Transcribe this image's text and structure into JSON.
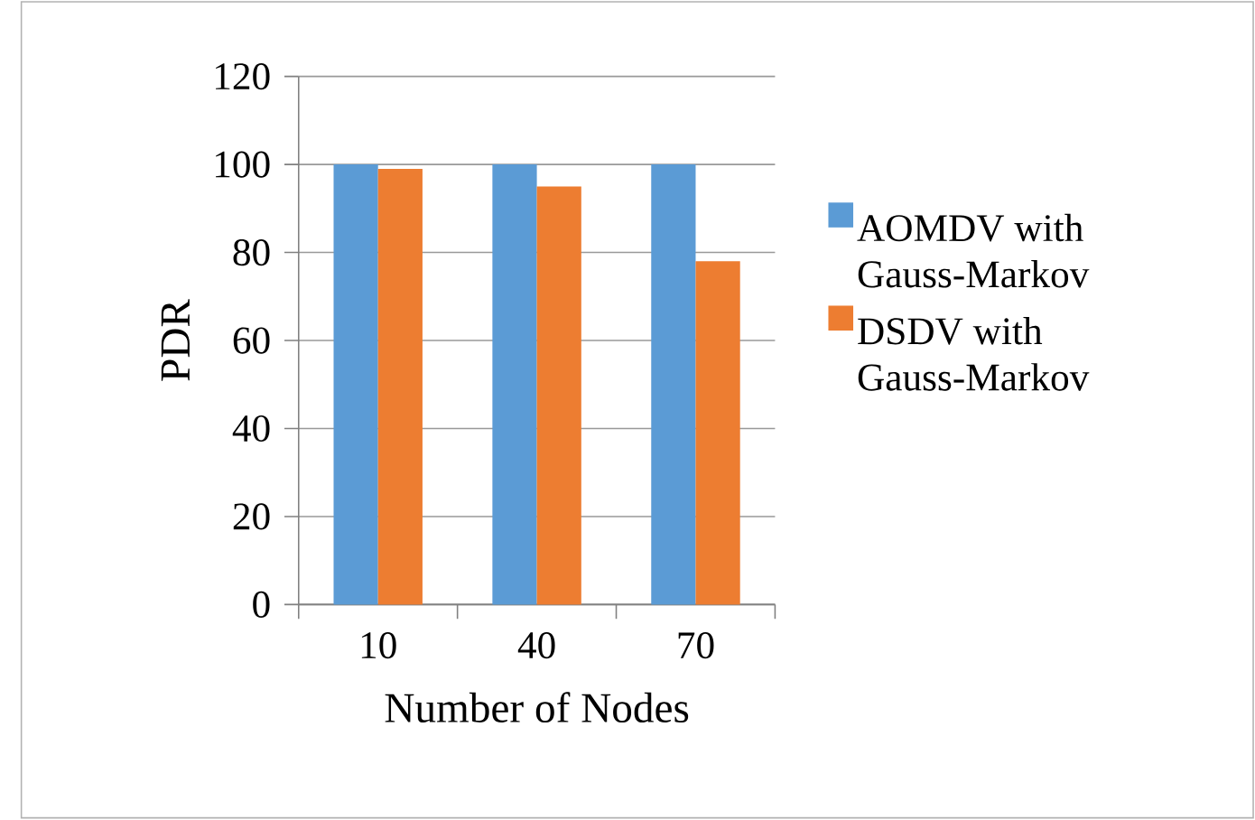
{
  "chart_data": {
    "type": "bar",
    "xlabel": "Number of Nodes",
    "ylabel": "PDR",
    "categories": [
      "10",
      "40",
      "70"
    ],
    "series": [
      {
        "name": "AOMDV with Gauss-Markov",
        "color": "#5b9bd5",
        "values": [
          100,
          100,
          100
        ]
      },
      {
        "name": "DSDV with Gauss-Markov",
        "color": "#ed7d31",
        "values": [
          99,
          95,
          78
        ]
      }
    ],
    "ylim": [
      0,
      120
    ],
    "yticks": [
      0,
      20,
      40,
      60,
      80,
      100,
      120
    ],
    "grid": "y",
    "legend": "right"
  }
}
